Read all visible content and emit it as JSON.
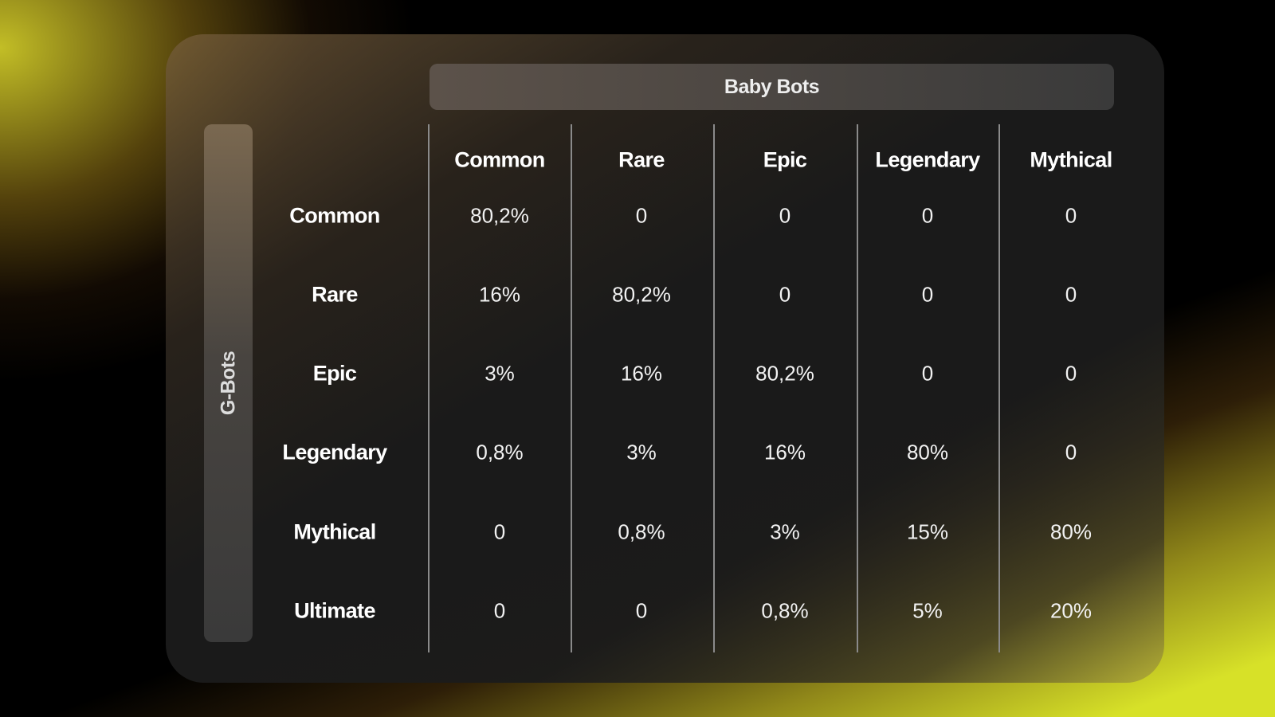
{
  "column_group_title": "Baby Bots",
  "row_group_title": "G-Bots",
  "columns": [
    "Common",
    "Rare",
    "Epic",
    "Legendary",
    "Mythical"
  ],
  "rows": [
    {
      "label": "Common",
      "values": [
        "80,2%",
        "0",
        "0",
        "0",
        "0"
      ]
    },
    {
      "label": "Rare",
      "values": [
        "16%",
        "80,2%",
        "0",
        "0",
        "0"
      ]
    },
    {
      "label": "Epic",
      "values": [
        "3%",
        "16%",
        "80,2%",
        "0",
        "0"
      ]
    },
    {
      "label": "Legendary",
      "values": [
        "0,8%",
        "3%",
        "16%",
        "80%",
        "0"
      ]
    },
    {
      "label": "Mythical",
      "values": [
        "0",
        "0,8%",
        "3%",
        "15%",
        "80%"
      ]
    },
    {
      "label": "Ultimate",
      "values": [
        "0",
        "0",
        "0,8%",
        "5%",
        "20%"
      ]
    }
  ],
  "colors": {
    "accent": "#d4e02a",
    "panel": "#1b1b1b"
  }
}
